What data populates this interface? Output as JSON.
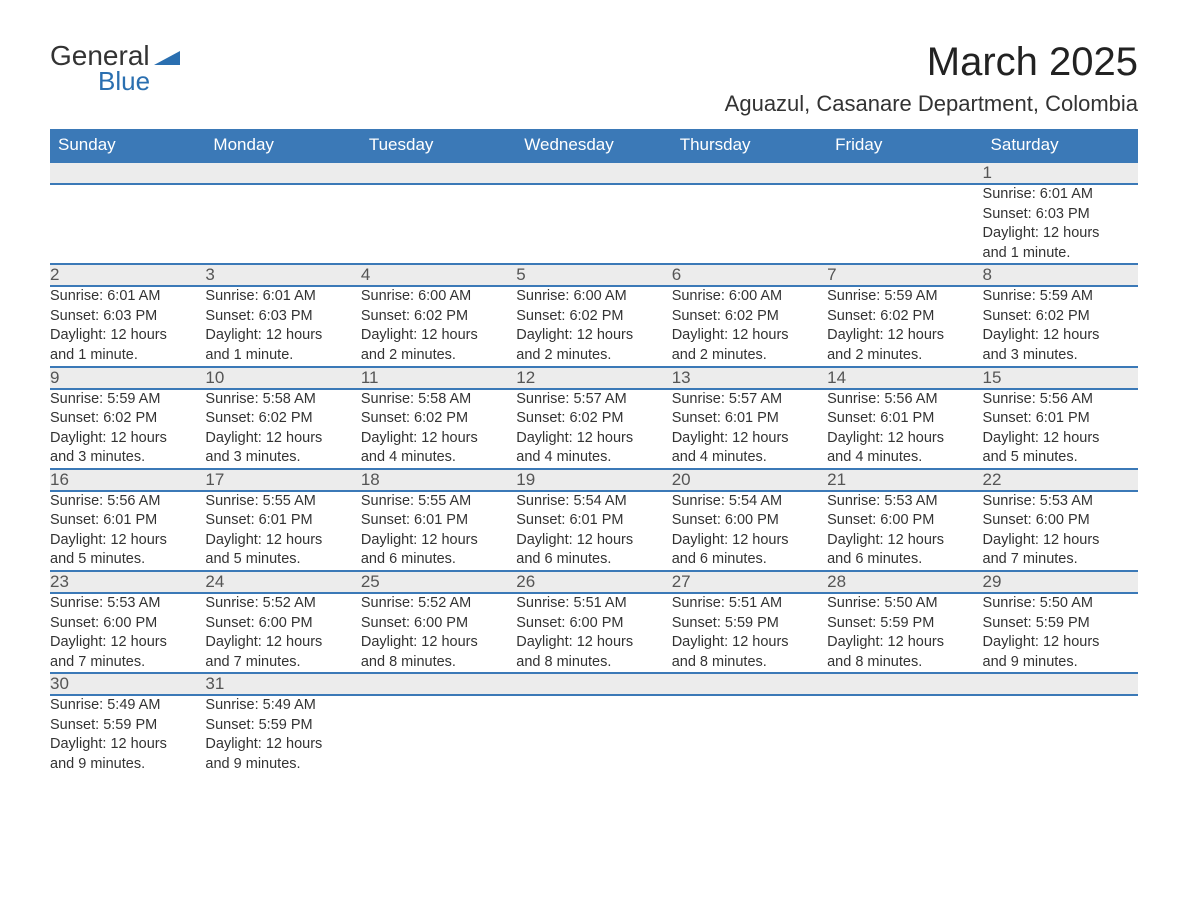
{
  "brand": {
    "name1": "General",
    "name2": "Blue",
    "logo_color": "#2a6fb0"
  },
  "title": "March 2025",
  "location": "Aguazul, Casanare Department, Colombia",
  "header_bg": "#3b79b7",
  "daynum_bg": "#ececec",
  "weekdays": [
    "Sunday",
    "Monday",
    "Tuesday",
    "Wednesday",
    "Thursday",
    "Friday",
    "Saturday"
  ],
  "weeks": [
    [
      null,
      null,
      null,
      null,
      null,
      null,
      {
        "n": "1",
        "sr": "6:01 AM",
        "ss": "6:03 PM",
        "dl": "12 hours and 1 minute."
      }
    ],
    [
      {
        "n": "2",
        "sr": "6:01 AM",
        "ss": "6:03 PM",
        "dl": "12 hours and 1 minute."
      },
      {
        "n": "3",
        "sr": "6:01 AM",
        "ss": "6:03 PM",
        "dl": "12 hours and 1 minute."
      },
      {
        "n": "4",
        "sr": "6:00 AM",
        "ss": "6:02 PM",
        "dl": "12 hours and 2 minutes."
      },
      {
        "n": "5",
        "sr": "6:00 AM",
        "ss": "6:02 PM",
        "dl": "12 hours and 2 minutes."
      },
      {
        "n": "6",
        "sr": "6:00 AM",
        "ss": "6:02 PM",
        "dl": "12 hours and 2 minutes."
      },
      {
        "n": "7",
        "sr": "5:59 AM",
        "ss": "6:02 PM",
        "dl": "12 hours and 2 minutes."
      },
      {
        "n": "8",
        "sr": "5:59 AM",
        "ss": "6:02 PM",
        "dl": "12 hours and 3 minutes."
      }
    ],
    [
      {
        "n": "9",
        "sr": "5:59 AM",
        "ss": "6:02 PM",
        "dl": "12 hours and 3 minutes."
      },
      {
        "n": "10",
        "sr": "5:58 AM",
        "ss": "6:02 PM",
        "dl": "12 hours and 3 minutes."
      },
      {
        "n": "11",
        "sr": "5:58 AM",
        "ss": "6:02 PM",
        "dl": "12 hours and 4 minutes."
      },
      {
        "n": "12",
        "sr": "5:57 AM",
        "ss": "6:02 PM",
        "dl": "12 hours and 4 minutes."
      },
      {
        "n": "13",
        "sr": "5:57 AM",
        "ss": "6:01 PM",
        "dl": "12 hours and 4 minutes."
      },
      {
        "n": "14",
        "sr": "5:56 AM",
        "ss": "6:01 PM",
        "dl": "12 hours and 4 minutes."
      },
      {
        "n": "15",
        "sr": "5:56 AM",
        "ss": "6:01 PM",
        "dl": "12 hours and 5 minutes."
      }
    ],
    [
      {
        "n": "16",
        "sr": "5:56 AM",
        "ss": "6:01 PM",
        "dl": "12 hours and 5 minutes."
      },
      {
        "n": "17",
        "sr": "5:55 AM",
        "ss": "6:01 PM",
        "dl": "12 hours and 5 minutes."
      },
      {
        "n": "18",
        "sr": "5:55 AM",
        "ss": "6:01 PM",
        "dl": "12 hours and 6 minutes."
      },
      {
        "n": "19",
        "sr": "5:54 AM",
        "ss": "6:01 PM",
        "dl": "12 hours and 6 minutes."
      },
      {
        "n": "20",
        "sr": "5:54 AM",
        "ss": "6:00 PM",
        "dl": "12 hours and 6 minutes."
      },
      {
        "n": "21",
        "sr": "5:53 AM",
        "ss": "6:00 PM",
        "dl": "12 hours and 6 minutes."
      },
      {
        "n": "22",
        "sr": "5:53 AM",
        "ss": "6:00 PM",
        "dl": "12 hours and 7 minutes."
      }
    ],
    [
      {
        "n": "23",
        "sr": "5:53 AM",
        "ss": "6:00 PM",
        "dl": "12 hours and 7 minutes."
      },
      {
        "n": "24",
        "sr": "5:52 AM",
        "ss": "6:00 PM",
        "dl": "12 hours and 7 minutes."
      },
      {
        "n": "25",
        "sr": "5:52 AM",
        "ss": "6:00 PM",
        "dl": "12 hours and 8 minutes."
      },
      {
        "n": "26",
        "sr": "5:51 AM",
        "ss": "6:00 PM",
        "dl": "12 hours and 8 minutes."
      },
      {
        "n": "27",
        "sr": "5:51 AM",
        "ss": "5:59 PM",
        "dl": "12 hours and 8 minutes."
      },
      {
        "n": "28",
        "sr": "5:50 AM",
        "ss": "5:59 PM",
        "dl": "12 hours and 8 minutes."
      },
      {
        "n": "29",
        "sr": "5:50 AM",
        "ss": "5:59 PM",
        "dl": "12 hours and 9 minutes."
      }
    ],
    [
      {
        "n": "30",
        "sr": "5:49 AM",
        "ss": "5:59 PM",
        "dl": "12 hours and 9 minutes."
      },
      {
        "n": "31",
        "sr": "5:49 AM",
        "ss": "5:59 PM",
        "dl": "12 hours and 9 minutes."
      },
      null,
      null,
      null,
      null,
      null
    ]
  ],
  "labels": {
    "sunrise": "Sunrise: ",
    "sunset": "Sunset: ",
    "daylight": "Daylight: "
  }
}
